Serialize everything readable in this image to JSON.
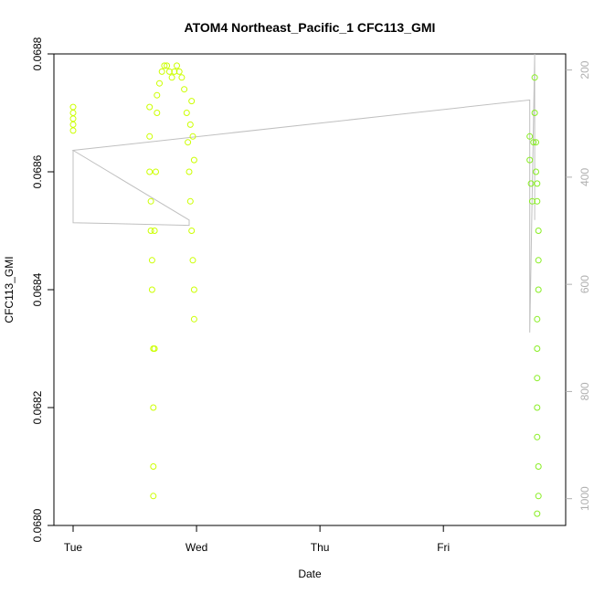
{
  "chart_data": {
    "type": "scatter",
    "title": "ATOM4 Northeast_Pacific_1 CFC113_GMI",
    "xlabel": "Date",
    "ylabel": "CFC113_GMI",
    "x_tick_labels": [
      "Tue",
      "Wed",
      "Thu",
      "Fri"
    ],
    "xlim": [
      0,
      3.85
    ],
    "ylim": [
      0.068,
      0.0688
    ],
    "y_ticks": [
      0.068,
      0.0682,
      0.0684,
      0.0686,
      0.0688
    ],
    "y_tick_labels": [
      "0.0680",
      "0.0682",
      "0.0684",
      "0.0686",
      "0.0688"
    ],
    "y2_ticks": [
      200,
      400,
      600,
      800,
      1000
    ],
    "y2_tick_labels": [
      "200",
      "400",
      "600",
      "800",
      "1000"
    ],
    "y2lim": [
      1050,
      170
    ],
    "grid": false,
    "colors": {
      "points_first_group": "#ccff00",
      "points_last_group": "#88ee22",
      "pressure_line": "#c0c0c0",
      "axis": "#000000",
      "right_axis": "#b0b0b0"
    },
    "series": [
      {
        "role": "cfc113 points",
        "points": [
          [
            0.0,
            0.06871
          ],
          [
            0.0,
            0.0687
          ],
          [
            0.0,
            0.06869
          ],
          [
            0.0,
            0.06868
          ],
          [
            0.0,
            0.06867
          ],
          [
            0.62,
            0.06871
          ],
          [
            0.62,
            0.06866
          ],
          [
            0.62,
            0.0686
          ],
          [
            0.63,
            0.06855
          ],
          [
            0.63,
            0.0685
          ],
          [
            0.64,
            0.06845
          ],
          [
            0.64,
            0.0684
          ],
          [
            0.65,
            0.0683
          ],
          [
            0.65,
            0.0682
          ],
          [
            0.65,
            0.0681
          ],
          [
            0.65,
            0.06805
          ],
          [
            0.66,
            0.0683
          ],
          [
            0.66,
            0.0685
          ],
          [
            0.67,
            0.0686
          ],
          [
            0.68,
            0.0687
          ],
          [
            0.68,
            0.06873
          ],
          [
            0.7,
            0.06875
          ],
          [
            0.72,
            0.06877
          ],
          [
            0.74,
            0.06878
          ],
          [
            0.76,
            0.06878
          ],
          [
            0.78,
            0.06877
          ],
          [
            0.8,
            0.06876
          ],
          [
            0.82,
            0.06877
          ],
          [
            0.84,
            0.06878
          ],
          [
            0.86,
            0.06877
          ],
          [
            0.88,
            0.06876
          ],
          [
            0.9,
            0.06874
          ],
          [
            0.92,
            0.0687
          ],
          [
            0.93,
            0.06865
          ],
          [
            0.94,
            0.0686
          ],
          [
            0.95,
            0.06855
          ],
          [
            0.96,
            0.0685
          ],
          [
            0.97,
            0.06845
          ],
          [
            0.98,
            0.0684
          ],
          [
            0.98,
            0.06835
          ],
          [
            0.96,
            0.06872
          ],
          [
            0.95,
            0.06868
          ],
          [
            0.97,
            0.06866
          ],
          [
            0.98,
            0.06862
          ],
          [
            3.7,
            0.06866
          ],
          [
            3.7,
            0.06862
          ],
          [
            3.71,
            0.06858
          ],
          [
            3.72,
            0.06855
          ],
          [
            3.73,
            0.06865
          ],
          [
            3.74,
            0.0687
          ],
          [
            3.74,
            0.06876
          ],
          [
            3.75,
            0.06865
          ],
          [
            3.75,
            0.0686
          ],
          [
            3.76,
            0.06858
          ],
          [
            3.76,
            0.06855
          ],
          [
            3.77,
            0.0685
          ],
          [
            3.77,
            0.06845
          ],
          [
            3.77,
            0.0684
          ],
          [
            3.76,
            0.06835
          ],
          [
            3.76,
            0.0683
          ],
          [
            3.76,
            0.06825
          ],
          [
            3.76,
            0.0682
          ],
          [
            3.76,
            0.06815
          ],
          [
            3.77,
            0.0681
          ],
          [
            3.77,
            0.06805
          ],
          [
            3.76,
            0.06802
          ]
        ]
      },
      {
        "role": "pressure line",
        "points": [
          [
            0.0,
            350
          ],
          [
            0.0,
            485
          ],
          [
            0.94,
            490
          ],
          [
            0.94,
            480
          ],
          [
            0.0,
            350
          ],
          [
            3.7,
            256
          ],
          [
            3.7,
            690
          ],
          [
            3.74,
            170
          ],
          [
            3.74,
            480
          ]
        ]
      }
    ]
  }
}
